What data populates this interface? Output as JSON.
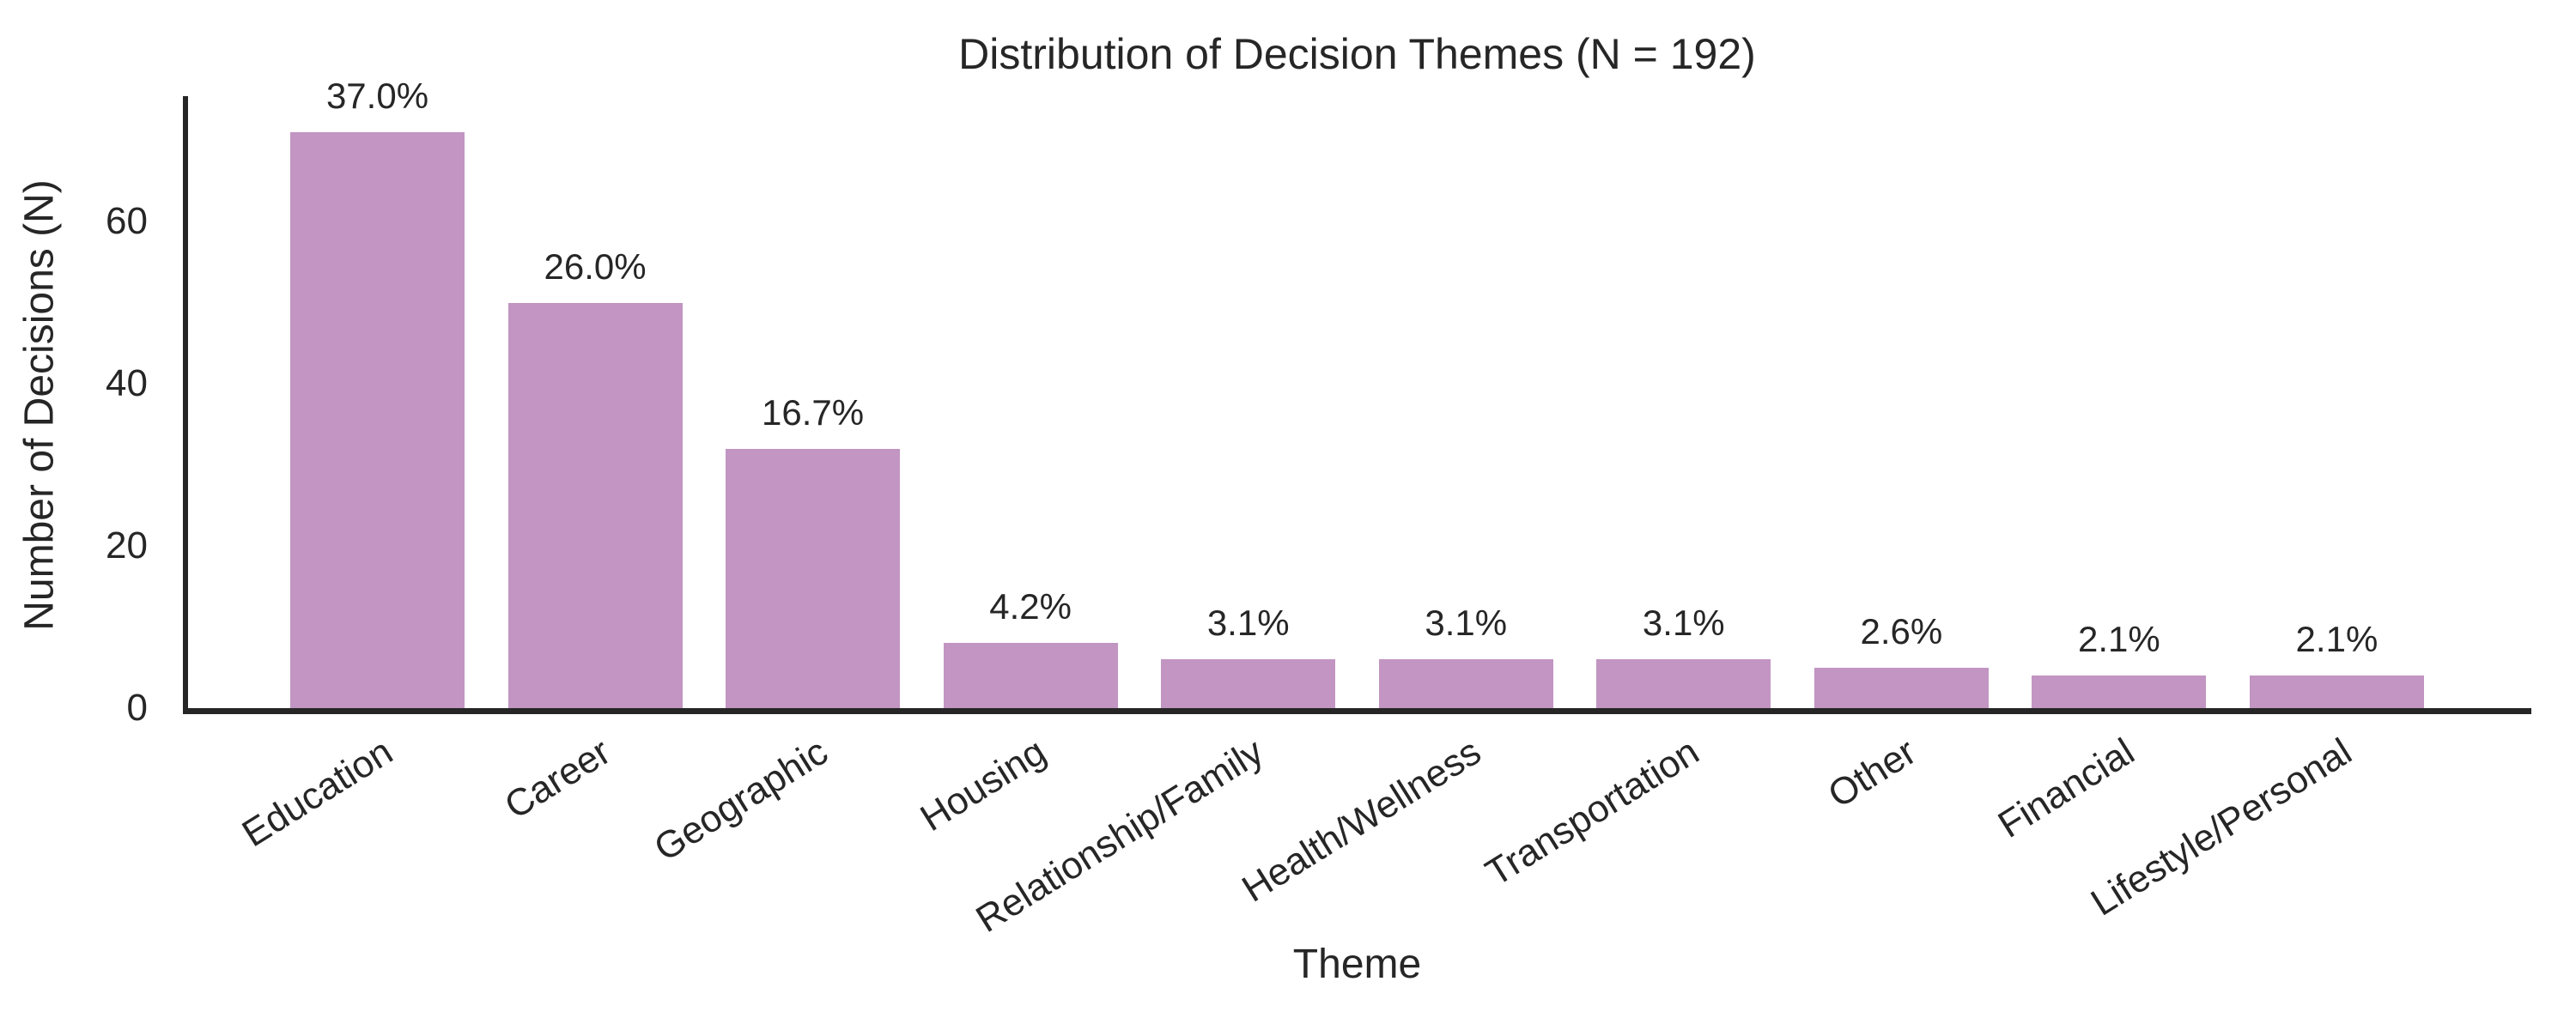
{
  "chart_data": {
    "type": "bar",
    "title": "Distribution of Decision Themes (N = 192)",
    "xlabel": "Theme",
    "ylabel": "Number of Decisions (N)",
    "categories": [
      "Education",
      "Career",
      "Geographic",
      "Housing",
      "Relationship/Family",
      "Health/Wellness",
      "Transportation",
      "Other",
      "Financial",
      "Lifestyle/Personal"
    ],
    "values": [
      71,
      50,
      32,
      8,
      6,
      6,
      6,
      5,
      4,
      4
    ],
    "bar_labels": [
      "37.0%",
      "26.0%",
      "16.7%",
      "4.2%",
      "3.1%",
      "3.1%",
      "3.1%",
      "2.6%",
      "2.1%",
      "2.1%"
    ],
    "n_total": 192,
    "yticks": [
      0,
      20,
      40,
      60
    ],
    "ylim": [
      0,
      75
    ],
    "grid": false,
    "legend_position": "none",
    "bar_color": "#c295c2",
    "axis_color": "#262626",
    "text_color": "#262626"
  }
}
